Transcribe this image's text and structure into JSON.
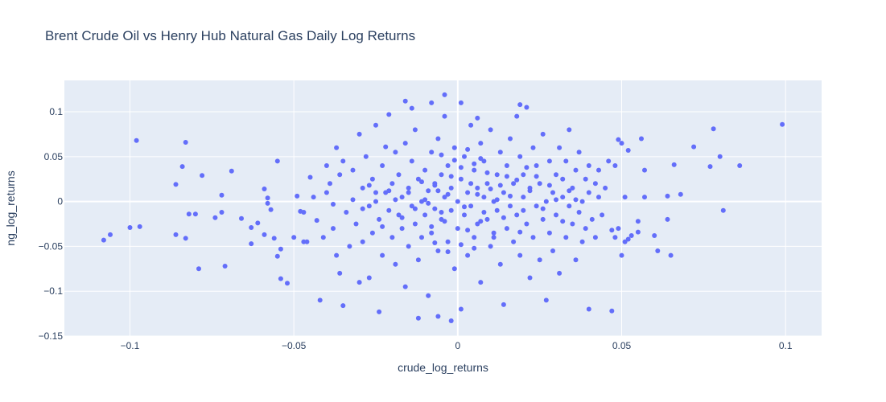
{
  "chart_data": {
    "type": "scatter",
    "title": "Brent Crude Oil vs Henry Hub Natural Gas Daily Log Returns",
    "xlabel": "crude_log_returns",
    "ylabel": "ng_log_returns",
    "xlim": [
      -0.12,
      0.111
    ],
    "ylim": [
      -0.15,
      0.135
    ],
    "x_ticks": [
      -0.1,
      -0.05,
      0,
      0.05,
      0.1
    ],
    "x_tick_labels": [
      "−0.1",
      "−0.05",
      "0",
      "0.05",
      "0.1"
    ],
    "y_ticks": [
      -0.15,
      -0.1,
      -0.05,
      0,
      0.05,
      0.1
    ],
    "y_tick_labels": [
      "−0.15",
      "−0.1",
      "−0.05",
      "0",
      "0.05",
      "0.1"
    ],
    "grid": true,
    "marker_color": "#636efa",
    "plot_bgcolor": "#e5ecf6",
    "points": [
      [
        -0.108,
        -0.043
      ],
      [
        -0.106,
        -0.037
      ],
      [
        -0.1,
        -0.029
      ],
      [
        -0.098,
        0.068
      ],
      [
        -0.097,
        -0.028
      ],
      [
        -0.086,
        0.019
      ],
      [
        -0.086,
        -0.037
      ],
      [
        -0.084,
        0.039
      ],
      [
        -0.083,
        0.066
      ],
      [
        -0.083,
        -0.041
      ],
      [
        -0.082,
        -0.014
      ],
      [
        -0.08,
        -0.014
      ],
      [
        -0.079,
        -0.075
      ],
      [
        -0.078,
        0.029
      ],
      [
        -0.074,
        -0.018
      ],
      [
        -0.072,
        0.007
      ],
      [
        -0.072,
        -0.012
      ],
      [
        -0.071,
        -0.072
      ],
      [
        -0.069,
        0.034
      ],
      [
        -0.066,
        -0.019
      ],
      [
        -0.063,
        -0.047
      ],
      [
        -0.063,
        -0.029
      ],
      [
        -0.061,
        -0.024
      ],
      [
        -0.059,
        0.014
      ],
      [
        -0.059,
        -0.037
      ],
      [
        -0.058,
        0.004
      ],
      [
        -0.058,
        -0.002
      ],
      [
        -0.057,
        -0.009
      ],
      [
        -0.056,
        -0.041
      ],
      [
        -0.055,
        -0.061
      ],
      [
        -0.055,
        0.045
      ],
      [
        -0.054,
        -0.086
      ],
      [
        -0.054,
        -0.053
      ],
      [
        -0.052,
        -0.091
      ],
      [
        -0.05,
        -0.04
      ],
      [
        -0.049,
        0.006
      ],
      [
        -0.048,
        -0.011
      ],
      [
        -0.047,
        -0.012
      ],
      [
        -0.047,
        -0.045
      ],
      [
        -0.046,
        -0.045
      ],
      [
        -0.045,
        0.027
      ],
      [
        -0.044,
        0.005
      ],
      [
        -0.043,
        -0.021
      ],
      [
        -0.042,
        -0.11
      ],
      [
        -0.041,
        -0.04
      ],
      [
        -0.04,
        0.04
      ],
      [
        -0.04,
        0.01
      ],
      [
        -0.039,
        0.02
      ],
      [
        -0.038,
        -0.003
      ],
      [
        -0.038,
        -0.03
      ],
      [
        -0.037,
        0.06
      ],
      [
        -0.037,
        -0.06
      ],
      [
        -0.036,
        0.03
      ],
      [
        -0.036,
        -0.08
      ],
      [
        -0.035,
        -0.116
      ],
      [
        -0.035,
        0.045
      ],
      [
        -0.034,
        -0.012
      ],
      [
        -0.033,
        -0.05
      ],
      [
        -0.032,
        0.002
      ],
      [
        -0.032,
        0.035
      ],
      [
        -0.031,
        -0.025
      ],
      [
        -0.03,
        0.075
      ],
      [
        -0.03,
        -0.09
      ],
      [
        -0.029,
        0.015
      ],
      [
        -0.029,
        -0.045
      ],
      [
        -0.028,
        0.05
      ],
      [
        -0.027,
        -0.005
      ],
      [
        -0.027,
        -0.085
      ],
      [
        -0.026,
        0.025
      ],
      [
        -0.026,
        -0.035
      ],
      [
        -0.025,
        0.085
      ],
      [
        -0.025,
        0.0
      ],
      [
        -0.024,
        -0.02
      ],
      [
        -0.024,
        -0.123
      ],
      [
        -0.023,
        0.04
      ],
      [
        -0.023,
        -0.06
      ],
      [
        -0.022,
        0.01
      ],
      [
        -0.021,
        -0.01
      ],
      [
        -0.021,
        0.097
      ],
      [
        -0.02,
        -0.04
      ],
      [
        -0.02,
        0.02
      ],
      [
        -0.019,
        0.055
      ],
      [
        -0.019,
        -0.07
      ],
      [
        -0.018,
        -0.015
      ],
      [
        -0.018,
        0.03
      ],
      [
        -0.017,
        0.005
      ],
      [
        -0.017,
        -0.03
      ],
      [
        -0.016,
        0.065
      ],
      [
        -0.016,
        -0.095
      ],
      [
        -0.015,
        0.015
      ],
      [
        -0.015,
        -0.05
      ],
      [
        -0.014,
        0.045
      ],
      [
        -0.014,
        -0.005
      ],
      [
        -0.013,
        -0.025
      ],
      [
        -0.013,
        0.08
      ],
      [
        -0.012,
        0.025
      ],
      [
        -0.012,
        -0.065
      ],
      [
        -0.011,
        0.0
      ],
      [
        -0.011,
        -0.04
      ],
      [
        -0.01,
        0.035
      ],
      [
        -0.01,
        -0.015
      ],
      [
        -0.009,
        0.012
      ],
      [
        -0.009,
        -0.105
      ],
      [
        -0.008,
        0.055
      ],
      [
        -0.008,
        -0.035
      ],
      [
        -0.007,
        0.02
      ],
      [
        -0.007,
        -0.008
      ],
      [
        -0.006,
        0.07
      ],
      [
        -0.006,
        -0.055
      ],
      [
        -0.005,
        0.03
      ],
      [
        -0.005,
        -0.02
      ],
      [
        -0.004,
        0.005
      ],
      [
        -0.004,
        0.095
      ],
      [
        -0.003,
        -0.045
      ],
      [
        -0.003,
        0.04
      ],
      [
        -0.002,
        -0.01
      ],
      [
        -0.002,
        0.015
      ],
      [
        -0.001,
        -0.075
      ],
      [
        -0.001,
        0.06
      ],
      [
        0.0,
        0.0
      ],
      [
        0.0,
        -0.03
      ],
      [
        0.001,
        0.025
      ],
      [
        0.001,
        -0.12
      ],
      [
        0.002,
        0.05
      ],
      [
        0.002,
        -0.015
      ],
      [
        0.003,
        0.01
      ],
      [
        0.003,
        -0.06
      ],
      [
        0.004,
        0.085
      ],
      [
        0.004,
        -0.005
      ],
      [
        0.005,
        0.035
      ],
      [
        0.005,
        -0.04
      ],
      [
        0.006,
        0.015
      ],
      [
        0.006,
        -0.025
      ],
      [
        0.007,
        0.065
      ],
      [
        0.007,
        -0.09
      ],
      [
        0.008,
        0.005
      ],
      [
        0.008,
        0.045
      ],
      [
        0.009,
        -0.02
      ],
      [
        0.009,
        0.02
      ],
      [
        0.01,
        -0.05
      ],
      [
        0.01,
        0.08
      ],
      [
        0.011,
        0.0
      ],
      [
        0.011,
        -0.035
      ],
      [
        0.012,
        0.03
      ],
      [
        0.012,
        -0.01
      ],
      [
        0.013,
        0.055
      ],
      [
        0.013,
        -0.07
      ],
      [
        0.014,
        0.01
      ],
      [
        0.014,
        -0.115
      ],
      [
        0.015,
        0.04
      ],
      [
        0.015,
        -0.03
      ],
      [
        0.016,
        -0.005
      ],
      [
        0.016,
        0.07
      ],
      [
        0.017,
        0.02
      ],
      [
        0.017,
        -0.045
      ],
      [
        0.018,
        0.095
      ],
      [
        0.018,
        -0.015
      ],
      [
        0.019,
        0.05
      ],
      [
        0.019,
        -0.06
      ],
      [
        0.02,
        0.005
      ],
      [
        0.02,
        0.03
      ],
      [
        0.021,
        -0.025
      ],
      [
        0.021,
        0.105
      ],
      [
        0.022,
        -0.085
      ],
      [
        0.022,
        0.015
      ],
      [
        0.023,
        0.06
      ],
      [
        0.023,
        -0.04
      ],
      [
        0.024,
        -0.005
      ],
      [
        0.024,
        0.04
      ],
      [
        0.025,
        -0.065
      ],
      [
        0.025,
        0.02
      ],
      [
        0.026,
        0.075
      ],
      [
        0.026,
        -0.02
      ],
      [
        0.027,
        0.0
      ],
      [
        0.027,
        -0.11
      ],
      [
        0.028,
        0.045
      ],
      [
        0.028,
        -0.035
      ],
      [
        0.029,
        0.01
      ],
      [
        0.029,
        -0.055
      ],
      [
        0.03,
        0.03
      ],
      [
        0.03,
        -0.015
      ],
      [
        0.031,
        0.06
      ],
      [
        0.031,
        -0.08
      ],
      [
        0.032,
        0.005
      ],
      [
        0.032,
        0.025
      ],
      [
        0.033,
        -0.04
      ],
      [
        0.033,
        0.045
      ],
      [
        0.034,
        -0.005
      ],
      [
        0.034,
        0.08
      ],
      [
        0.035,
        -0.025
      ],
      [
        0.035,
        0.015
      ],
      [
        0.036,
        -0.065
      ],
      [
        0.036,
        0.035
      ],
      [
        0.037,
        -0.012
      ],
      [
        0.037,
        0.055
      ],
      [
        0.038,
        0.0
      ],
      [
        0.038,
        -0.045
      ],
      [
        0.039,
        0.025
      ],
      [
        0.039,
        -0.03
      ],
      [
        0.04,
        0.04
      ],
      [
        0.04,
        0.01
      ],
      [
        0.041,
        -0.02
      ],
      [
        0.042,
        0.02
      ],
      [
        0.042,
        -0.04
      ],
      [
        0.043,
        0.005
      ],
      [
        0.043,
        0.035
      ],
      [
        0.044,
        -0.015
      ],
      [
        0.045,
        0.015
      ],
      [
        0.046,
        0.045
      ],
      [
        0.047,
        -0.032
      ],
      [
        0.047,
        -0.122
      ],
      [
        0.048,
        0.04
      ],
      [
        0.048,
        -0.04
      ],
      [
        0.049,
        -0.03
      ],
      [
        0.049,
        0.069
      ],
      [
        0.05,
        0.065
      ],
      [
        0.05,
        -0.06
      ],
      [
        0.051,
        0.005
      ],
      [
        0.051,
        -0.045
      ],
      [
        0.052,
        0.057
      ],
      [
        0.052,
        -0.042
      ],
      [
        0.053,
        -0.038
      ],
      [
        0.055,
        -0.022
      ],
      [
        0.055,
        -0.034
      ],
      [
        0.056,
        0.07
      ],
      [
        0.057,
        0.005
      ],
      [
        0.057,
        0.035
      ],
      [
        0.06,
        -0.038
      ],
      [
        0.061,
        -0.055
      ],
      [
        0.064,
        0.006
      ],
      [
        0.064,
        -0.02
      ],
      [
        0.065,
        -0.06
      ],
      [
        0.066,
        0.041
      ],
      [
        0.068,
        0.008
      ],
      [
        0.072,
        0.061
      ],
      [
        0.077,
        0.039
      ],
      [
        0.078,
        0.081
      ],
      [
        0.08,
        0.05
      ],
      [
        0.081,
        -0.01
      ],
      [
        0.086,
        0.04
      ],
      [
        0.099,
        0.086
      ],
      [
        0.001,
        0.11
      ],
      [
        -0.008,
        0.11
      ],
      [
        -0.016,
        0.112
      ],
      [
        -0.004,
        0.119
      ],
      [
        0.019,
        0.108
      ],
      [
        -0.012,
        -0.13
      ],
      [
        -0.006,
        -0.128
      ],
      [
        -0.002,
        -0.133
      ],
      [
        0.006,
        0.093
      ],
      [
        -0.022,
        0.061
      ],
      [
        0.04,
        -0.12
      ],
      [
        -0.014,
        0.104
      ],
      [
        0.004,
        0.02
      ],
      [
        0.006,
        0.008
      ],
      [
        0.008,
        -0.012
      ],
      [
        0.01,
        0.014
      ],
      [
        -0.004,
        -0.022
      ],
      [
        0.012,
        0.002
      ],
      [
        0.002,
        -0.006
      ],
      [
        -0.002,
        0.028
      ],
      [
        0.014,
        -0.018
      ],
      [
        0.016,
        0.006
      ],
      [
        -0.006,
        0.012
      ],
      [
        0.018,
        0.024
      ],
      [
        -0.01,
        0.002
      ],
      [
        0.02,
        -0.01
      ],
      [
        0.022,
        0.012
      ],
      [
        -0.008,
        -0.028
      ],
      [
        0.024,
        0.028
      ],
      [
        0.001,
        0.038
      ],
      [
        0.003,
        -0.032
      ],
      [
        0.005,
        0.042
      ],
      [
        0.007,
        -0.022
      ],
      [
        0.009,
        0.032
      ],
      [
        0.011,
        -0.04
      ],
      [
        0.013,
        0.018
      ],
      [
        0.015,
        0.028
      ],
      [
        -0.003,
        0.008
      ],
      [
        -0.005,
        -0.012
      ],
      [
        -0.007,
        0.018
      ],
      [
        -0.009,
        -0.002
      ],
      [
        -0.011,
        0.022
      ],
      [
        -0.013,
        -0.008
      ],
      [
        -0.015,
        0.01
      ],
      [
        -0.017,
        -0.018
      ],
      [
        -0.019,
        0.002
      ],
      [
        -0.021,
        0.012
      ],
      [
        -0.023,
        -0.028
      ],
      [
        -0.025,
        0.01
      ],
      [
        -0.027,
        0.018
      ],
      [
        -0.029,
        -0.008
      ],
      [
        0.026,
        -0.008
      ],
      [
        0.028,
        0.018
      ],
      [
        0.03,
        0.002
      ],
      [
        0.032,
        -0.022
      ],
      [
        0.034,
        0.012
      ],
      [
        0.036,
        0.002
      ],
      [
        0.001,
        -0.048
      ],
      [
        0.003,
        0.058
      ],
      [
        0.005,
        -0.052
      ],
      [
        0.007,
        0.048
      ],
      [
        -0.001,
        0.046
      ],
      [
        -0.003,
        -0.056
      ],
      [
        -0.005,
        0.052
      ],
      [
        -0.007,
        -0.046
      ],
      [
        0.019,
        -0.034
      ],
      [
        0.021,
        0.038
      ]
    ]
  }
}
